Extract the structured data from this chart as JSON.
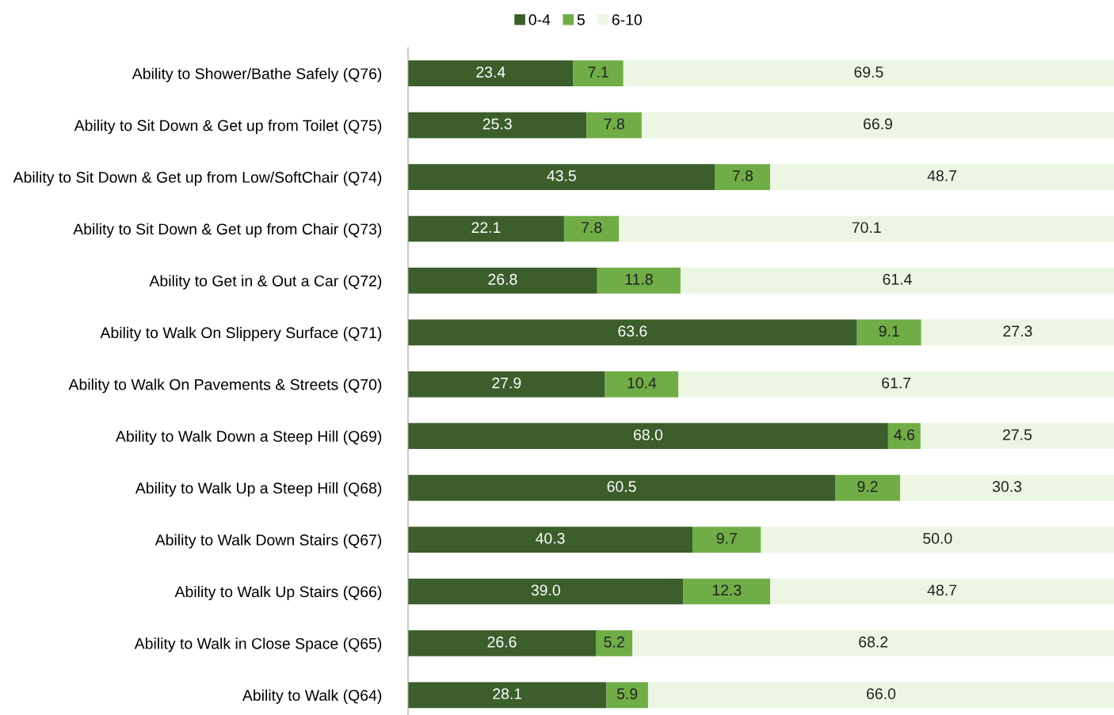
{
  "chart_data": {
    "type": "bar",
    "orientation": "horizontal",
    "stacked": true,
    "legend": "top",
    "grid": false,
    "tick_labels": "y",
    "xlim": [
      0,
      100
    ],
    "categories": [
      "Ability to Shower/Bathe Safely (Q76)",
      "Ability to Sit Down & Get up from Toilet (Q75)",
      "Ability to Sit Down & Get up from Low/SoftChair (Q74)",
      "Ability to Sit Down & Get up from Chair (Q73)",
      "Ability to Get in & Out a Car (Q72)",
      "Ability to Walk On Slippery Surface (Q71)",
      "Ability to Walk On Pavements & Streets (Q70)",
      "Ability to Walk Down a Steep Hill (Q69)",
      "Ability to Walk Up a Steep Hill (Q68)",
      "Ability to Walk Down Stairs (Q67)",
      "Ability to Walk Up Stairs (Q66)",
      "Ability to Walk in Close Space (Q65)",
      "Ability to Walk (Q64)"
    ],
    "series": [
      {
        "name": "0-4",
        "color": "#3b5e2b",
        "values": [
          23.4,
          25.3,
          43.5,
          22.1,
          26.8,
          63.6,
          27.9,
          68.0,
          60.5,
          40.3,
          39.0,
          26.6,
          28.1
        ],
        "value_labels": [
          "23.4",
          "25.3",
          "43.5",
          "22.1",
          "26.8",
          "63.6",
          "27.9",
          "68.0",
          "60.5",
          "40.3",
          "39.0",
          "26.6",
          "28.1"
        ]
      },
      {
        "name": "5",
        "color": "#70ad47",
        "values": [
          7.1,
          7.8,
          7.8,
          7.8,
          11.8,
          9.1,
          10.4,
          4.6,
          9.2,
          9.7,
          12.3,
          5.2,
          5.9
        ],
        "value_labels": [
          "7.1",
          "7.8",
          "7.8",
          "7.8",
          "11.8",
          "9.1",
          "10.4",
          "4.6",
          "9.2",
          "9.7",
          "12.3",
          "5.2",
          "5.9"
        ]
      },
      {
        "name": "6-10",
        "color": "#ecf6e3",
        "values": [
          69.5,
          66.9,
          48.7,
          70.1,
          61.4,
          27.3,
          61.7,
          27.5,
          30.3,
          50.0,
          48.7,
          68.2,
          66.0
        ],
        "value_labels": [
          "69.5",
          "66.9",
          "48.7",
          "70.1",
          "61.4",
          "27.3",
          "61.7",
          "27.5",
          "30.3",
          "50.0",
          "48.7",
          "68.2",
          "66.0"
        ]
      }
    ]
  }
}
